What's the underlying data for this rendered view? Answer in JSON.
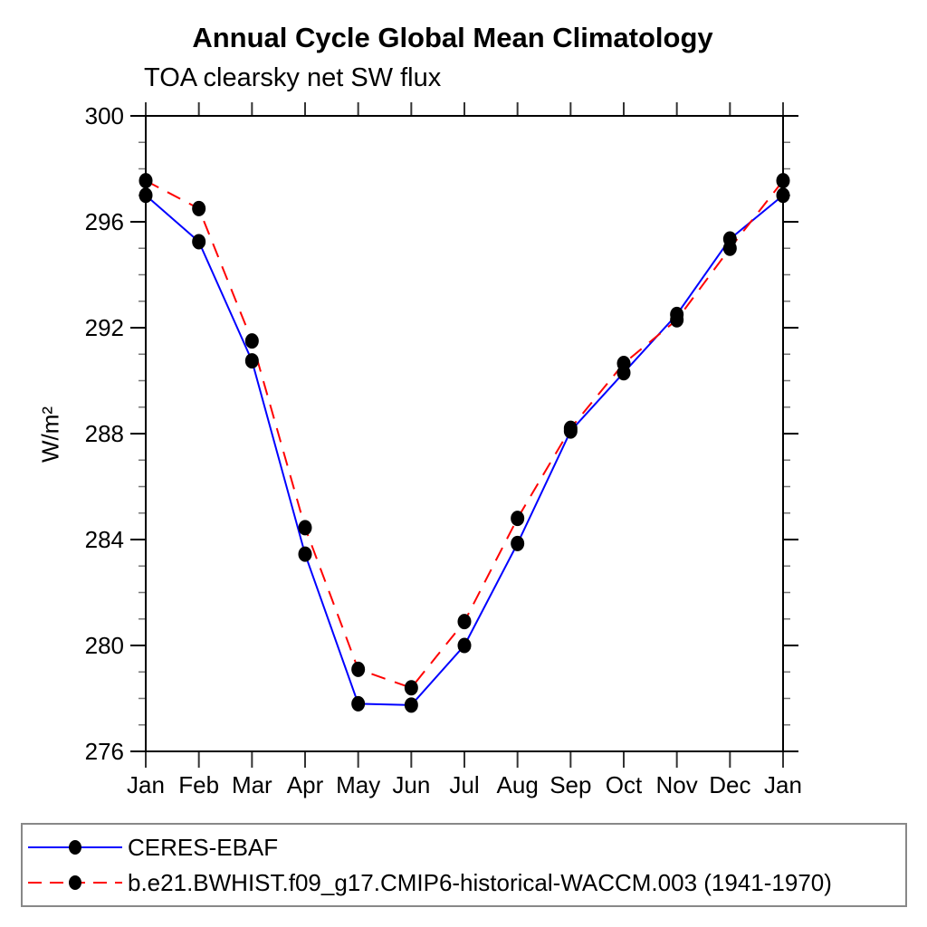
{
  "page": {
    "background_color": "#ffffff",
    "text_color": "#000000"
  },
  "chart_data": {
    "type": "line",
    "title": "Annual Cycle Global Mean Climatology",
    "subtitle": "TOA clearsky net SW flux",
    "ylabel": "W/m²",
    "xlabel": "",
    "categories": [
      "Jan",
      "Feb",
      "Mar",
      "Apr",
      "May",
      "Jun",
      "Jul",
      "Aug",
      "Sep",
      "Oct",
      "Nov",
      "Dec",
      "Jan"
    ],
    "ylim": [
      276,
      300
    ],
    "ytick_interval_major": 4,
    "ytick_interval_minor": 1,
    "ytick_labels": [
      "276",
      "280",
      "284",
      "288",
      "292",
      "296",
      "300"
    ],
    "grid": false,
    "tick_direction": "out",
    "legend_position": "bottom-left-box",
    "series": [
      {
        "name": "CERES-EBAF",
        "color": "#0000ff",
        "line_style": "solid",
        "marker": "filled-circle",
        "marker_color": "#000000",
        "values": [
          297.0,
          295.25,
          290.75,
          283.45,
          277.8,
          277.75,
          280.0,
          283.85,
          288.1,
          290.3,
          292.5,
          295.35,
          297.0
        ]
      },
      {
        "name": "b.e21.BWHIST.f09_g17.CMIP6-historical-WACCM.003 (1941-1970)",
        "color": "#ff0000",
        "line_style": "dashed",
        "marker": "filled-circle",
        "marker_color": "#000000",
        "values": [
          297.55,
          296.5,
          291.5,
          284.45,
          279.1,
          278.4,
          280.9,
          284.8,
          288.2,
          290.65,
          292.3,
          295.0,
          297.55
        ]
      }
    ]
  }
}
